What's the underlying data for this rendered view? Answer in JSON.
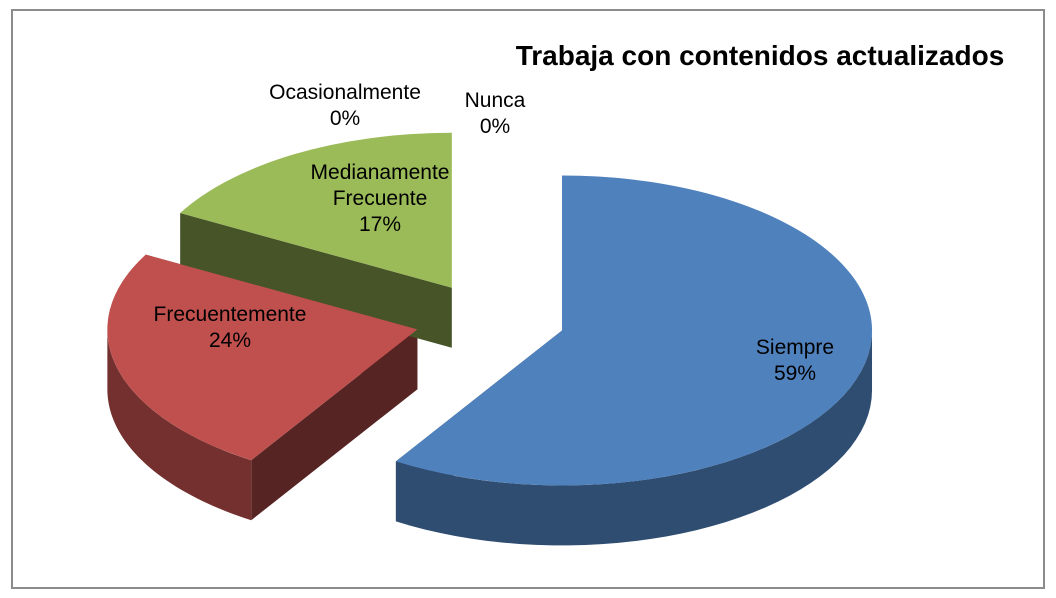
{
  "chart_data": {
    "type": "pie3d",
    "title": "Trabaja con contenidos actualizados",
    "categories": [
      "Siempre",
      "Frecuentemente",
      "Medianamente Frecuente",
      "Ocasionalmente",
      "Nunca"
    ],
    "values": [
      59,
      24,
      17,
      0,
      0
    ],
    "value_labels": [
      "59%",
      "24%",
      "17%",
      "0%",
      "0%"
    ],
    "colors": [
      "#4f81bd",
      "#c0504d",
      "#9bbb59",
      "#8064a2",
      "#4bacc6"
    ]
  }
}
